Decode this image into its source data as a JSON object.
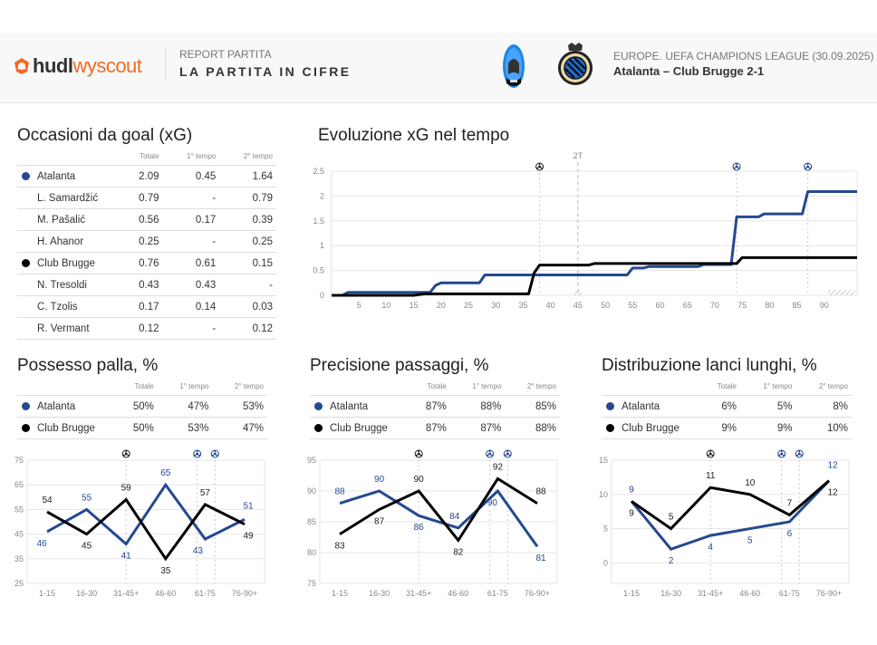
{
  "header": {
    "brand_primary": "hudl",
    "brand_secondary": "wyscout",
    "report_subtitle": "REPORT PARTITA",
    "report_title": "LA PARTITA IN CIFRE",
    "competition": "EUROPE. UEFA CHAMPIONS LEAGUE (30.09.2025)",
    "match": "Atalanta – Club Brugge 2-1",
    "home_logo": "atalanta-crest",
    "away_logo": "club-brugge-crest"
  },
  "colors": {
    "home": "#24498f",
    "away": "#000000",
    "brand": "#f26b21",
    "grid": "#e6e6e6",
    "axis_text": "#888888"
  },
  "teams": {
    "home": "Atalanta",
    "away": "Club Brugge"
  },
  "xg_table": {
    "title": "Occasioni da goal (xG)",
    "columns": [
      "Totale",
      "1° tempo",
      "2° tempo"
    ],
    "rows": [
      {
        "name": "Atalanta",
        "team": "home",
        "values": [
          "2.09",
          "0.45",
          "1.64"
        ]
      },
      {
        "name": "L. Samardžić",
        "values": [
          "0.79",
          "-",
          "0.79"
        ]
      },
      {
        "name": "M. Pašalić",
        "values": [
          "0.56",
          "0.17",
          "0.39"
        ]
      },
      {
        "name": "H. Ahanor",
        "values": [
          "0.25",
          "-",
          "0.25"
        ]
      },
      {
        "name": "Club Brugge",
        "team": "away",
        "values": [
          "0.76",
          "0.61",
          "0.15"
        ]
      },
      {
        "name": "N. Tresoldi",
        "values": [
          "0.43",
          "0.43",
          "-"
        ]
      },
      {
        "name": "C. Tzolis",
        "values": [
          "0.17",
          "0.14",
          "0.03"
        ]
      },
      {
        "name": "R. Vermant",
        "values": [
          "0.12",
          "-",
          "0.12"
        ]
      }
    ]
  },
  "possession_table": {
    "title": "Possesso palla, %",
    "columns": [
      "Totale",
      "1° tempo",
      "2° tempo"
    ],
    "rows": [
      {
        "name": "Atalanta",
        "team": "home",
        "values": [
          "50%",
          "47%",
          "53%"
        ]
      },
      {
        "name": "Club Brugge",
        "team": "away",
        "values": [
          "50%",
          "53%",
          "47%"
        ]
      }
    ]
  },
  "passing_table": {
    "title": "Precisione passaggi, %",
    "columns": [
      "Totale",
      "1° tempo",
      "2° tempo"
    ],
    "rows": [
      {
        "name": "Atalanta",
        "team": "home",
        "values": [
          "87%",
          "88%",
          "85%"
        ]
      },
      {
        "name": "Club Brugge",
        "team": "away",
        "values": [
          "87%",
          "87%",
          "88%"
        ]
      }
    ]
  },
  "longball_table": {
    "title": "Distribuzione lanci lunghi, %",
    "columns": [
      "Totale",
      "1° tempo",
      "2° tempo"
    ],
    "rows": [
      {
        "name": "Atalanta",
        "team": "home",
        "values": [
          "6%",
          "5%",
          "8%"
        ]
      },
      {
        "name": "Club Brugge",
        "team": "away",
        "values": [
          "9%",
          "9%",
          "10%"
        ]
      }
    ]
  },
  "chart_data": [
    {
      "id": "xg",
      "type": "line",
      "title": "Evoluzione xG nel tempo",
      "xlabel": "",
      "ylabel": "",
      "xlim": [
        0,
        96
      ],
      "ylim": [
        0,
        2.5
      ],
      "x_ticks": [
        5,
        10,
        15,
        20,
        25,
        30,
        35,
        40,
        45,
        50,
        55,
        60,
        65,
        70,
        75,
        80,
        85,
        90
      ],
      "y_ticks": [
        0,
        0.5,
        1,
        1.5,
        2,
        2.5
      ],
      "y_tick_labels": [
        "0",
        "0.5",
        "1",
        "1.5",
        "2",
        "2.5"
      ],
      "grid": true,
      "half_time_marker": {
        "x": 45,
        "label": "2T"
      },
      "goal_markers": [
        {
          "minute": 38,
          "team": "away"
        },
        {
          "minute": 74,
          "team": "home"
        },
        {
          "minute": 87,
          "team": "home"
        }
      ],
      "series": [
        {
          "name": "Atalanta",
          "team": "home",
          "points": [
            [
              0,
              0
            ],
            [
              2,
              0
            ],
            [
              3,
              0.06
            ],
            [
              18,
              0.06
            ],
            [
              19,
              0.2
            ],
            [
              20,
              0.25
            ],
            [
              27,
              0.25
            ],
            [
              28,
              0.41
            ],
            [
              54,
              0.41
            ],
            [
              55,
              0.55
            ],
            [
              57,
              0.55
            ],
            [
              58,
              0.58
            ],
            [
              67,
              0.58
            ],
            [
              68,
              0.62
            ],
            [
              73,
              0.62
            ],
            [
              74,
              1.58
            ],
            [
              78,
              1.58
            ],
            [
              79,
              1.64
            ],
            [
              86,
              1.64
            ],
            [
              87,
              2.09
            ],
            [
              96,
              2.09
            ]
          ]
        },
        {
          "name": "Club Brugge",
          "team": "away",
          "points": [
            [
              0,
              0
            ],
            [
              15,
              0
            ],
            [
              17,
              0.03
            ],
            [
              36,
              0.03
            ],
            [
              37,
              0.45
            ],
            [
              38,
              0.61
            ],
            [
              45,
              0.61
            ],
            [
              47,
              0.61
            ],
            [
              48,
              0.64
            ],
            [
              74,
              0.64
            ],
            [
              75,
              0.76
            ],
            [
              96,
              0.76
            ]
          ]
        }
      ]
    },
    {
      "id": "possession",
      "type": "line",
      "title": "Possesso palla, %",
      "categories": [
        "1-15",
        "16-30",
        "31-45+",
        "46-60",
        "61-75",
        "76-90+"
      ],
      "ylim": [
        25,
        75
      ],
      "y_ticks": [
        25,
        35,
        45,
        55,
        65,
        75
      ],
      "grid": true,
      "goal_markers": [
        {
          "pos": 2.5,
          "team": "away"
        },
        {
          "pos": 4.3,
          "team": "home"
        },
        {
          "pos": 4.75,
          "team": "home"
        }
      ],
      "series": [
        {
          "name": "Atalanta",
          "team": "home",
          "values": [
            46,
            55,
            41,
            65,
            43,
            51
          ]
        },
        {
          "name": "Club Brugge",
          "team": "away",
          "values": [
            54,
            45,
            59,
            35,
            57,
            49
          ]
        }
      ]
    },
    {
      "id": "passing",
      "type": "line",
      "title": "Precisione passaggi, %",
      "categories": [
        "1-15",
        "16-30",
        "31-45+",
        "46-60",
        "61-75",
        "76-90+"
      ],
      "ylim": [
        75,
        95
      ],
      "y_ticks": [
        75,
        80,
        85,
        90,
        95
      ],
      "grid": true,
      "goal_markers": [
        {
          "pos": 2.5,
          "team": "away"
        },
        {
          "pos": 4.3,
          "team": "home"
        },
        {
          "pos": 4.75,
          "team": "home"
        }
      ],
      "series": [
        {
          "name": "Atalanta",
          "team": "home",
          "values": [
            88,
            90,
            86,
            84,
            90,
            81
          ]
        },
        {
          "name": "Club Brugge",
          "team": "away",
          "values": [
            83,
            87,
            90,
            82,
            92,
            88
          ]
        }
      ]
    },
    {
      "id": "longballs",
      "type": "line",
      "title": "Distribuzione lanci lunghi, %",
      "categories": [
        "1-15",
        "16-30",
        "31-45+",
        "46-60",
        "61-75",
        "76-90+"
      ],
      "ylim": [
        -3,
        15
      ],
      "y_ticks": [
        0,
        5,
        10,
        15
      ],
      "grid": true,
      "goal_markers": [
        {
          "pos": 2.5,
          "team": "away"
        },
        {
          "pos": 4.3,
          "team": "home"
        },
        {
          "pos": 4.75,
          "team": "home"
        }
      ],
      "series": [
        {
          "name": "Atalanta",
          "team": "home",
          "values": [
            9,
            2,
            4,
            5,
            6,
            12
          ]
        },
        {
          "name": "Club Brugge",
          "team": "away",
          "values": [
            9,
            5,
            11,
            10,
            7,
            12
          ]
        }
      ]
    }
  ]
}
